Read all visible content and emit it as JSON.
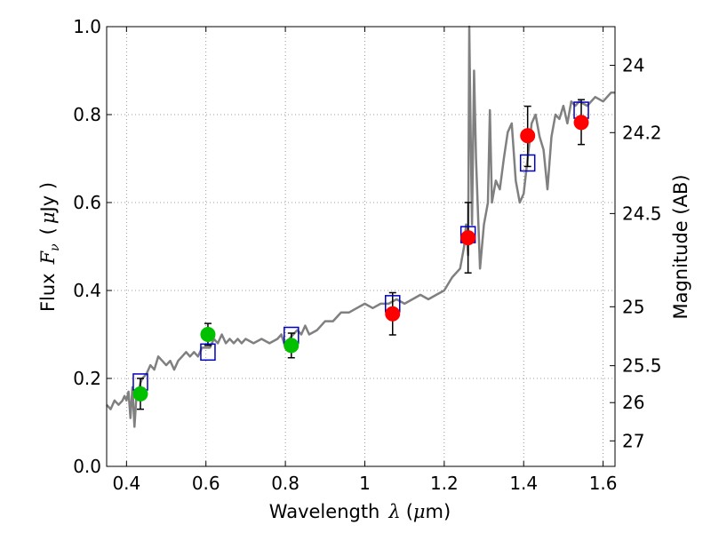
{
  "chart_data": {
    "type": "line",
    "title": "",
    "xlabel_text": "Wavelength",
    "xlabel_symbol": "λ",
    "xlabel_unit_open": "(",
    "xlabel_unit_mu": "μ",
    "xlabel_unit_rest": "m)",
    "ylabel_prefix": "Flux",
    "ylabel_symbol": "F",
    "ylabel_sub": "ν",
    "ylabel_unit_open": "(",
    "ylabel_unit_mu": "μ",
    "ylabel_unit_rest": "Jy )",
    "y2label": "Magnitude (AB)",
    "xlim": [
      0.35,
      1.63
    ],
    "ylim": [
      0.0,
      1.0
    ],
    "grid": true,
    "x_ticks": [
      0.4,
      0.6,
      0.8,
      1.0,
      1.2,
      1.4,
      1.6
    ],
    "x_tick_labels": [
      "0.4",
      "0.6",
      "0.8",
      "1",
      "1.2",
      "1.4",
      "1.6"
    ],
    "y_ticks": [
      0.0,
      0.2,
      0.4,
      0.6,
      0.8,
      1.0
    ],
    "y_tick_labels": [
      "0.0",
      "0.2",
      "0.4",
      "0.6",
      "0.8",
      "1.0"
    ],
    "y2_ticks": [
      {
        "label": "24",
        "flux": 0.912
      },
      {
        "label": "24.2",
        "flux": 0.759
      },
      {
        "label": "24.5",
        "flux": 0.575
      },
      {
        "label": "25",
        "flux": 0.363
      },
      {
        "label": "25.5",
        "flux": 0.229
      },
      {
        "label": "26",
        "flux": 0.145
      },
      {
        "label": "27",
        "flux": 0.058
      }
    ],
    "colors": {
      "model": "#808080",
      "green_points": "#00c000",
      "red_points": "#ff0000",
      "model_photometry": "#0000c0",
      "errorbars": "#000000",
      "grid": "#808080"
    },
    "series": [
      {
        "name": "model SED",
        "kind": "line",
        "x": [
          0.35,
          0.36,
          0.37,
          0.38,
          0.39,
          0.395,
          0.4,
          0.405,
          0.41,
          0.415,
          0.42,
          0.425,
          0.43,
          0.435,
          0.44,
          0.45,
          0.46,
          0.47,
          0.48,
          0.49,
          0.5,
          0.51,
          0.52,
          0.53,
          0.54,
          0.55,
          0.56,
          0.57,
          0.58,
          0.59,
          0.6,
          0.61,
          0.62,
          0.63,
          0.64,
          0.65,
          0.66,
          0.67,
          0.68,
          0.69,
          0.7,
          0.72,
          0.74,
          0.76,
          0.78,
          0.79,
          0.8,
          0.81,
          0.82,
          0.83,
          0.84,
          0.85,
          0.86,
          0.88,
          0.9,
          0.92,
          0.94,
          0.96,
          0.98,
          1.0,
          1.02,
          1.04,
          1.06,
          1.08,
          1.1,
          1.12,
          1.14,
          1.16,
          1.18,
          1.2,
          1.22,
          1.24,
          1.25,
          1.255,
          1.26,
          1.263,
          1.266,
          1.27,
          1.275,
          1.28,
          1.29,
          1.3,
          1.31,
          1.315,
          1.32,
          1.33,
          1.34,
          1.35,
          1.36,
          1.37,
          1.38,
          1.39,
          1.4,
          1.41,
          1.42,
          1.43,
          1.44,
          1.45,
          1.46,
          1.47,
          1.48,
          1.49,
          1.5,
          1.51,
          1.52,
          1.53,
          1.54,
          1.56,
          1.58,
          1.6,
          1.62,
          1.63
        ],
        "y": [
          0.14,
          0.13,
          0.15,
          0.14,
          0.15,
          0.16,
          0.15,
          0.17,
          0.11,
          0.18,
          0.09,
          0.16,
          0.17,
          0.19,
          0.2,
          0.21,
          0.23,
          0.22,
          0.25,
          0.24,
          0.23,
          0.24,
          0.22,
          0.24,
          0.25,
          0.26,
          0.25,
          0.26,
          0.25,
          0.27,
          0.27,
          0.27,
          0.29,
          0.28,
          0.3,
          0.28,
          0.29,
          0.28,
          0.29,
          0.28,
          0.29,
          0.28,
          0.29,
          0.28,
          0.29,
          0.3,
          0.27,
          0.29,
          0.3,
          0.31,
          0.3,
          0.32,
          0.3,
          0.31,
          0.33,
          0.33,
          0.35,
          0.35,
          0.36,
          0.37,
          0.36,
          0.37,
          0.37,
          0.38,
          0.37,
          0.38,
          0.39,
          0.38,
          0.39,
          0.4,
          0.43,
          0.45,
          0.5,
          0.55,
          0.48,
          1.0,
          0.8,
          0.55,
          0.9,
          0.7,
          0.45,
          0.55,
          0.6,
          0.81,
          0.6,
          0.65,
          0.63,
          0.7,
          0.76,
          0.78,
          0.65,
          0.6,
          0.62,
          0.7,
          0.78,
          0.8,
          0.75,
          0.72,
          0.63,
          0.75,
          0.8,
          0.79,
          0.82,
          0.78,
          0.83,
          0.82,
          0.83,
          0.82,
          0.84,
          0.83,
          0.85,
          0.85
        ]
      },
      {
        "name": "observed (green)",
        "kind": "points",
        "x": [
          0.435,
          0.605,
          0.815
        ],
        "y": [
          0.165,
          0.3,
          0.275
        ],
        "yerr": [
          0.035,
          0.025,
          0.028
        ]
      },
      {
        "name": "observed (red)",
        "kind": "points",
        "x": [
          1.07,
          1.26,
          1.41,
          1.545
        ],
        "y": [
          0.347,
          0.52,
          0.752,
          0.782
        ],
        "yerr_low": [
          0.048,
          0.08,
          0.07,
          0.05
        ],
        "yerr_high": [
          0.048,
          0.08,
          0.067,
          0.052
        ]
      },
      {
        "name": "model photometry",
        "kind": "squares",
        "x": [
          0.435,
          0.605,
          0.815,
          1.07,
          1.26,
          1.41,
          1.545
        ],
        "y": [
          0.192,
          0.26,
          0.298,
          0.37,
          0.527,
          0.69,
          0.81
        ]
      }
    ]
  }
}
